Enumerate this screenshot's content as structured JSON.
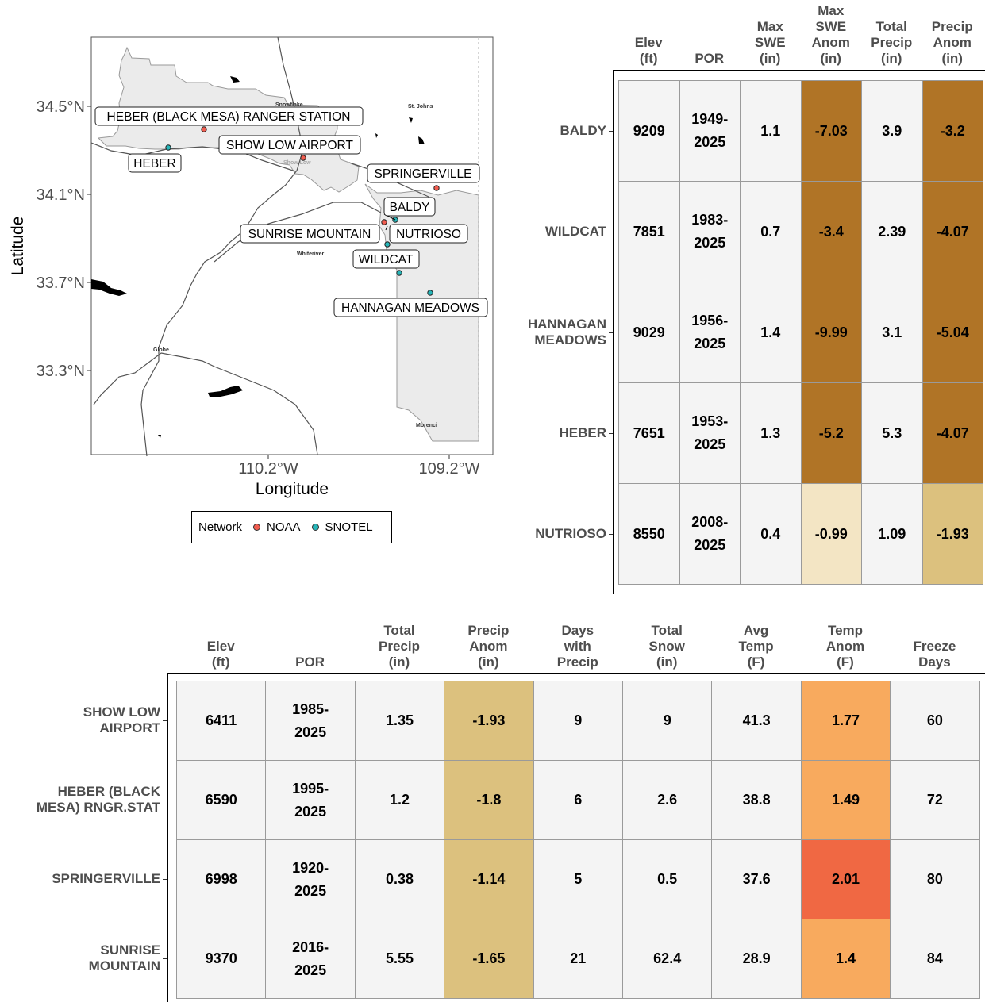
{
  "colors": {
    "noaa": "#f15c4f",
    "snotel": "#26b6b9",
    "drought_dark": "#b07426",
    "drought_mid": "#dcc17e",
    "drought_light": "#f3e5c4",
    "temp_warm": "#f8aa5e",
    "temp_hot": "#f06843",
    "neutral": "#f4f4f4"
  },
  "map": {
    "xlabel": "Longitude",
    "ylabel": "Latitude",
    "lat_ticks": [
      "34.5°N",
      "34.1°N",
      "33.7°N",
      "33.3°N"
    ],
    "lon_ticks": [
      "110.2°W",
      "109.2°W"
    ],
    "towns": [
      "Snowflake",
      "St. Johns",
      "Show Low",
      "Whiteriver",
      "Globe",
      "Morenci"
    ],
    "stations": [
      {
        "name": "HEBER (BLACK MESA) RANGER STATION",
        "network": "NOAA"
      },
      {
        "name": "SHOW LOW AIRPORT",
        "network": "NOAA"
      },
      {
        "name": "HEBER",
        "network": "SNOTEL"
      },
      {
        "name": "SPRINGERVILLE",
        "network": "NOAA"
      },
      {
        "name": "BALDY",
        "network": "SNOTEL"
      },
      {
        "name": "SUNRISE MOUNTAIN",
        "network": "NOAA"
      },
      {
        "name": "NUTRIOSO",
        "network": "SNOTEL"
      },
      {
        "name": "WILDCAT",
        "network": "SNOTEL"
      },
      {
        "name": "HANNAGAN MEADOWS",
        "network": "SNOTEL"
      }
    ],
    "legend": {
      "title": "Network",
      "items": [
        "NOAA",
        "SNOTEL"
      ]
    }
  },
  "snotel_table": {
    "headers": [
      "Elev\n(ft)",
      "POR",
      "Max\nSWE\n(in)",
      "Max\nSWE\nAnom\n(in)",
      "Total\nPrecip\n(in)",
      "Precip\nAnom\n(in)"
    ],
    "rows": [
      {
        "label": "BALDY",
        "values": [
          "9209",
          "1949-\n2025",
          "1.1",
          "-7.03",
          "3.9",
          "-3.2"
        ],
        "fills": [
          "neutral",
          "neutral",
          "neutral",
          "drought_dark",
          "neutral",
          "drought_dark"
        ]
      },
      {
        "label": "WILDCAT",
        "values": [
          "7851",
          "1983-\n2025",
          "0.7",
          "-3.4",
          "2.39",
          "-4.07"
        ],
        "fills": [
          "neutral",
          "neutral",
          "neutral",
          "drought_dark",
          "neutral",
          "drought_dark"
        ]
      },
      {
        "label": "HANNAGAN\nMEADOWS",
        "values": [
          "9029",
          "1956-\n2025",
          "1.4",
          "-9.99",
          "3.1",
          "-5.04"
        ],
        "fills": [
          "neutral",
          "neutral",
          "neutral",
          "drought_dark",
          "neutral",
          "drought_dark"
        ]
      },
      {
        "label": "HEBER",
        "values": [
          "7651",
          "1953-\n2025",
          "1.3",
          "-5.2",
          "5.3",
          "-4.07"
        ],
        "fills": [
          "neutral",
          "neutral",
          "neutral",
          "drought_dark",
          "neutral",
          "drought_dark"
        ]
      },
      {
        "label": "NUTRIOSO",
        "values": [
          "8550",
          "2008-\n2025",
          "0.4",
          "-0.99",
          "1.09",
          "-1.93"
        ],
        "fills": [
          "neutral",
          "neutral",
          "neutral",
          "drought_light",
          "neutral",
          "drought_mid"
        ]
      }
    ]
  },
  "noaa_table": {
    "headers": [
      "Elev\n(ft)",
      "POR",
      "Total\nPrecip\n(in)",
      "Precip\nAnom\n(in)",
      "Days\nwith\nPrecip",
      "Total\nSnow\n(in)",
      "Avg\nTemp\n(F)",
      "Temp\nAnom\n(F)",
      "Freeze\nDays"
    ],
    "rows": [
      {
        "label": "SHOW LOW\nAIRPORT",
        "values": [
          "6411",
          "1985-\n2025",
          "1.35",
          "-1.93",
          "9",
          "9",
          "41.3",
          "1.77",
          "60"
        ],
        "fills": [
          "neutral",
          "neutral",
          "neutral",
          "drought_mid",
          "neutral",
          "neutral",
          "neutral",
          "temp_warm",
          "neutral"
        ]
      },
      {
        "label": "HEBER (BLACK\nMESA) RNGR.STAT",
        "values": [
          "6590",
          "1995-\n2025",
          "1.2",
          "-1.8",
          "6",
          "2.6",
          "38.8",
          "1.49",
          "72"
        ],
        "fills": [
          "neutral",
          "neutral",
          "neutral",
          "drought_mid",
          "neutral",
          "neutral",
          "neutral",
          "temp_warm",
          "neutral"
        ]
      },
      {
        "label": "SPRINGERVILLE",
        "values": [
          "6998",
          "1920-\n2025",
          "0.38",
          "-1.14",
          "5",
          "0.5",
          "37.6",
          "2.01",
          "80"
        ],
        "fills": [
          "neutral",
          "neutral",
          "neutral",
          "drought_mid",
          "neutral",
          "neutral",
          "neutral",
          "temp_hot",
          "neutral"
        ]
      },
      {
        "label": "SUNRISE\nMOUNTAIN",
        "values": [
          "9370",
          "2016-\n2025",
          "5.55",
          "-1.65",
          "21",
          "62.4",
          "28.9",
          "1.4",
          "84"
        ],
        "fills": [
          "neutral",
          "neutral",
          "neutral",
          "drought_mid",
          "neutral",
          "neutral",
          "neutral",
          "temp_warm",
          "neutral"
        ]
      }
    ]
  }
}
